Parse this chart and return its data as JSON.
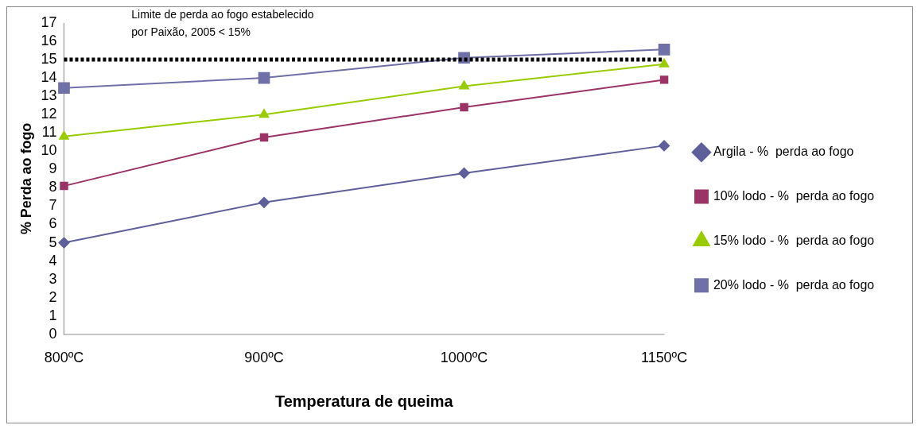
{
  "chart_data": {
    "type": "line",
    "xlabel": "Temperatura de queima",
    "ylabel": "% Perda ao fogo",
    "categories": [
      "800ºC",
      "900ºC",
      "1000ºC",
      "1150ºC"
    ],
    "series": [
      {
        "name": "Argila - %  perda ao fogo",
        "color": "#5f5f9c",
        "marker": "diamond",
        "values": [
          5.0,
          7.2,
          8.8,
          10.3
        ]
      },
      {
        "name": "10% lodo - %  perda ao fogo",
        "color": "#9b3366",
        "marker": "square",
        "values": [
          8.1,
          10.75,
          12.4,
          13.9
        ]
      },
      {
        "name": "15% lodo - %  perda ao fogo",
        "color": "#99cc00",
        "marker": "triangle",
        "values": [
          10.8,
          12.0,
          13.55,
          14.75
        ]
      },
      {
        "name": "20% lodo - %  perda ao fogo",
        "color": "#7070a8",
        "marker": "square",
        "values": [
          13.45,
          14.0,
          15.1,
          15.55
        ]
      }
    ],
    "ylim": [
      0,
      17
    ],
    "yticks": [
      0,
      1,
      2,
      3,
      4,
      5,
      6,
      7,
      8,
      9,
      10,
      11,
      12,
      13,
      14,
      15,
      16,
      17
    ],
    "ref_lines": [
      {
        "axis": "y",
        "value": 15,
        "label": "Limite de perda ao fogo estabelecido por Paixão, 2005 < 15%",
        "color": "#000000",
        "line_style": "dotted"
      }
    ],
    "grid": false,
    "legend": "right",
    "line_style": "solid"
  }
}
